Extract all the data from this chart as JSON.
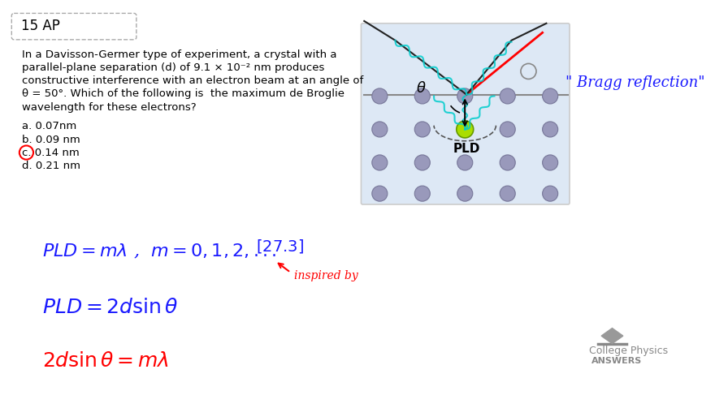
{
  "bg_color": "#ffffff",
  "title_box_text": "15 AP",
  "problem_text_lines": [
    "In a Davisson-Germer type of experiment, a crystal with a",
    "parallel-plane separation (d) of 9.1 × 10⁻² nm produces",
    "constructive interference with an electron beam at an angle of",
    "θ = 50°. Which of the following is  the maximum de Broglie",
    "wavelength for these electrons?"
  ],
  "choices": [
    "a. 0.07nm",
    "b. 0.09 nm",
    "c. 0.14 nm",
    "d. 0.21 nm"
  ],
  "correct_choice_index": 2,
  "bragg_text": "\" Bragg reflection\"",
  "pld_label": "PLD",
  "theta_label": "θ",
  "logo_text_line1": "College Physics",
  "logo_text_line2": "ANSWERS"
}
